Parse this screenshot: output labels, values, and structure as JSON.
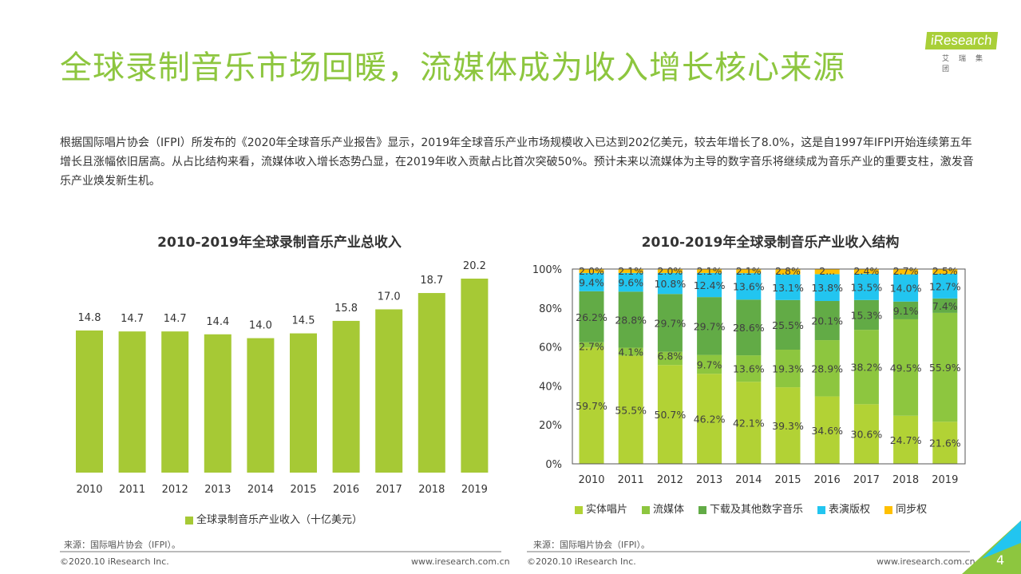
{
  "header": {
    "title": "全球录制音乐市场回暖，流媒体成为收入增长核心来源",
    "logo_text": "iResearch",
    "logo_sub": "艾瑞集团"
  },
  "paragraph": "根据国际唱片协会（IFPI）所发布的《2020年全球音乐产业报告》显示，2019年全球音乐产业市场规模收入已达到202亿美元，较去年增长了8.0%，这是自1997年IFPI开始连续第五年增长且涨幅依旧居高。从占比结构来看，流媒体收入增长态势凸显，在2019年收入贡献占比首次突破50%。预计未来以流媒体为主导的数字音乐将继续成为音乐产业的重要支柱，激发音乐产业焕发新生机。",
  "chart_data": [
    {
      "type": "bar",
      "title": "2010-2019年全球录制音乐产业总收入",
      "categories": [
        "2010",
        "2011",
        "2012",
        "2013",
        "2014",
        "2015",
        "2016",
        "2017",
        "2018",
        "2019"
      ],
      "series": [
        {
          "name": "全球录制音乐产业收入（十亿美元）",
          "values": [
            14.8,
            14.7,
            14.7,
            14.4,
            14.0,
            14.5,
            15.8,
            17.0,
            18.7,
            20.2
          ],
          "color": "#a6c935"
        }
      ],
      "ylim": [
        0,
        20.2
      ],
      "grid": false,
      "legend": "bottom"
    },
    {
      "type": "bar",
      "stacked": true,
      "title": "2010-2019年全球录制音乐产业收入结构",
      "categories": [
        "2010",
        "2011",
        "2012",
        "2013",
        "2014",
        "2015",
        "2016",
        "2017",
        "2018",
        "2019"
      ],
      "yticks": [
        "0%",
        "20%",
        "40%",
        "60%",
        "80%",
        "100%"
      ],
      "ylim": [
        0,
        100
      ],
      "legend": "bottom",
      "grid": false,
      "series": [
        {
          "name": "实体唱片",
          "color": "#b2d235",
          "values": [
            59.7,
            55.5,
            50.7,
            46.2,
            42.1,
            39.3,
            34.6,
            30.6,
            24.7,
            21.6
          ]
        },
        {
          "name": "流媒体",
          "color": "#8dc63f",
          "values": [
            2.7,
            4.1,
            6.8,
            9.7,
            13.6,
            19.3,
            28.9,
            38.2,
            49.5,
            55.9
          ]
        },
        {
          "name": "下载及其他数字音乐",
          "color": "#62ab46",
          "values": [
            26.2,
            28.8,
            29.7,
            29.7,
            28.6,
            25.5,
            20.1,
            15.3,
            9.1,
            7.4
          ]
        },
        {
          "name": "表演版权",
          "color": "#22c5f0",
          "values": [
            9.4,
            9.6,
            10.8,
            12.4,
            13.6,
            13.1,
            13.8,
            13.5,
            14.0,
            12.7
          ]
        },
        {
          "name": "同步权",
          "color": "#ffc000",
          "values": [
            2.0,
            2.1,
            2.0,
            2.1,
            2.1,
            2.8,
            null,
            2.4,
            2.7,
            2.5
          ],
          "labels": [
            "2.0%",
            "2.1%",
            "2.0%",
            "2.1%",
            "2.1%",
            "2.8%",
            "2...",
            "2.4%",
            "2.7%",
            "2.5%"
          ]
        }
      ]
    }
  ],
  "footer": {
    "source": "来源：国际唱片协会（IFPI）。",
    "copyright": "©2020.10 iResearch Inc.",
    "url": "www.iresearch.com.cn",
    "page": "4"
  }
}
